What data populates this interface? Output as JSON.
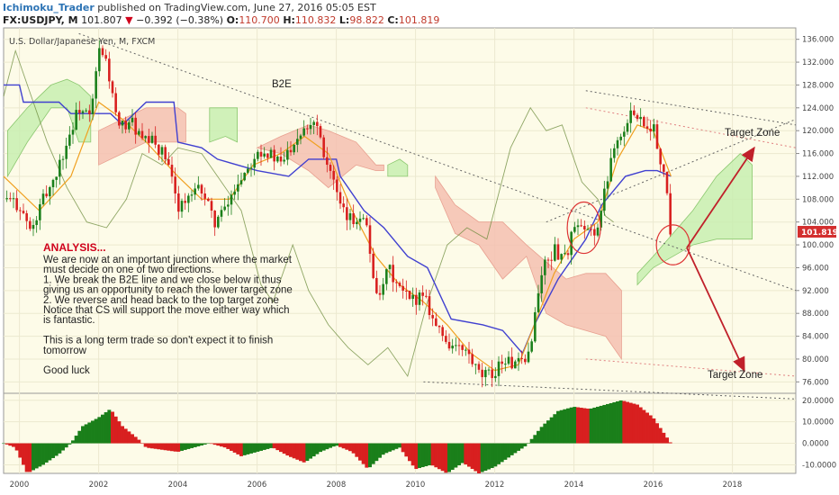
{
  "header": {
    "publisher": "Ichimoku_Trader",
    "published_text": "published on TradingView.com, June 27, 2016 05:05 EST",
    "symbol": "FX:USDJPY, M",
    "last": "101.807",
    "change": "−0.392 (−0.38%)",
    "o_label": "O:",
    "o": "110.700",
    "h_label": "H:",
    "h": "110.832",
    "l_label": "L:",
    "l": "98.822",
    "c_label": "C:",
    "c": "101.819"
  },
  "chart_title": "U.S. Dollar/Japanese Yen, M, FXCM",
  "annotations": {
    "b2e": "B2E",
    "target_top": "Target Zone",
    "target_bottom": "Target Zone",
    "analysis_title": "ANALYSIS...",
    "analysis_lines": [
      "We are now at an important junction where the market",
      "must decide on one of two directions.",
      "1. We break the B2E line and we close below it thus",
      "giving us an opportunity to reach the lower target zone",
      "2. We reverse and head back to the top target zone",
      "Notice that CS will support the move either way which",
      "is fantastic.",
      "",
      "This is a long term trade so don't expect it to finish",
      "tomorrow",
      "",
      "Good luck"
    ]
  },
  "price_label": "101.819",
  "colors": {
    "up": "#1a7f1a",
    "down": "#d81f1f",
    "tenkan": "#f0a020",
    "kijun": "#4040d0",
    "chikou": "#6a8a3a",
    "kumo_bull": "#c8efb0",
    "kumo_bear": "#f5c0b0",
    "arrow": "#c0202a",
    "label_bg": "#d32f2f"
  },
  "chart_data": {
    "type": "candlestick",
    "title": "U.S. Dollar/Japanese Yen, M, FXCM",
    "x_ticks": [
      "2000",
      "2002",
      "2004",
      "2006",
      "2008",
      "2010",
      "2012",
      "2014",
      "2016",
      "2018"
    ],
    "y_ticks": [
      "136.000",
      "132.000",
      "128.000",
      "124.000",
      "120.000",
      "116.000",
      "112.000",
      "108.000",
      "104.000",
      "100.000",
      "96.000",
      "92.000",
      "88.000",
      "84.000",
      "80.000",
      "76.000"
    ],
    "ylim": [
      74,
      138
    ],
    "xlim": [
      1999.6,
      2019.6
    ],
    "last_close": 101.819,
    "close_path": [
      [
        1999.6,
        108
      ],
      [
        2000.0,
        107
      ],
      [
        2000.3,
        102
      ],
      [
        2000.6,
        108
      ],
      [
        2000.9,
        112
      ],
      [
        2001.2,
        118
      ],
      [
        2001.5,
        124
      ],
      [
        2001.8,
        122
      ],
      [
        2002.0,
        134
      ],
      [
        2002.2,
        132
      ],
      [
        2002.5,
        120
      ],
      [
        2002.8,
        122
      ],
      [
        2003.1,
        118
      ],
      [
        2003.4,
        118
      ],
      [
        2003.7,
        115
      ],
      [
        2004.0,
        107
      ],
      [
        2004.3,
        108
      ],
      [
        2004.6,
        110
      ],
      [
        2004.9,
        104
      ],
      [
        2005.2,
        106
      ],
      [
        2005.5,
        111
      ],
      [
        2005.8,
        114
      ],
      [
        2006.0,
        117
      ],
      [
        2006.3,
        116
      ],
      [
        2006.6,
        114
      ],
      [
        2006.9,
        118
      ],
      [
        2007.2,
        121
      ],
      [
        2007.5,
        122
      ],
      [
        2007.7,
        116
      ],
      [
        2007.9,
        112
      ],
      [
        2008.1,
        106
      ],
      [
        2008.4,
        104
      ],
      [
        2008.7,
        106
      ],
      [
        2008.9,
        96
      ],
      [
        2009.1,
        90
      ],
      [
        2009.3,
        96
      ],
      [
        2009.6,
        92
      ],
      [
        2009.9,
        90
      ],
      [
        2010.2,
        92
      ],
      [
        2010.5,
        86
      ],
      [
        2010.8,
        83
      ],
      [
        2011.0,
        82
      ],
      [
        2011.3,
        81
      ],
      [
        2011.6,
        77
      ],
      [
        2011.9,
        77
      ],
      [
        2012.2,
        80
      ],
      [
        2012.5,
        79
      ],
      [
        2012.8,
        79
      ],
      [
        2013.0,
        87
      ],
      [
        2013.2,
        96
      ],
      [
        2013.5,
        99
      ],
      [
        2013.8,
        98
      ],
      [
        2014.0,
        103
      ],
      [
        2014.3,
        102
      ],
      [
        2014.6,
        103
      ],
      [
        2014.8,
        110
      ],
      [
        2015.0,
        118
      ],
      [
        2015.3,
        120
      ],
      [
        2015.5,
        124
      ],
      [
        2015.8,
        121
      ],
      [
        2016.0,
        121
      ],
      [
        2016.2,
        113
      ],
      [
        2016.35,
        110
      ],
      [
        2016.45,
        101.819
      ]
    ],
    "tenkan": [
      [
        1999.6,
        112
      ],
      [
        2000.5,
        106
      ],
      [
        2001.3,
        112
      ],
      [
        2002.0,
        125
      ],
      [
        2002.6,
        122
      ],
      [
        2003.2,
        118
      ],
      [
        2004.0,
        112
      ],
      [
        2004.6,
        108
      ],
      [
        2005.3,
        108
      ],
      [
        2005.9,
        114
      ],
      [
        2006.6,
        116
      ],
      [
        2007.2,
        119
      ],
      [
        2007.8,
        116
      ],
      [
        2008.4,
        106
      ],
      [
        2009.0,
        98
      ],
      [
        2009.6,
        93
      ],
      [
        2010.2,
        90
      ],
      [
        2010.8,
        86
      ],
      [
        2011.4,
        81
      ],
      [
        2012.0,
        78
      ],
      [
        2012.6,
        79
      ],
      [
        2013.0,
        86
      ],
      [
        2013.5,
        95
      ],
      [
        2014.0,
        101
      ],
      [
        2014.6,
        104
      ],
      [
        2015.1,
        115
      ],
      [
        2015.6,
        121
      ],
      [
        2016.0,
        120
      ],
      [
        2016.45,
        112
      ]
    ],
    "kijun": [
      [
        1999.6,
        128
      ],
      [
        2000.0,
        128
      ],
      [
        2000.1,
        125
      ],
      [
        2001.0,
        125
      ],
      [
        2001.3,
        123
      ],
      [
        2002.3,
        123
      ],
      [
        2002.6,
        121
      ],
      [
        2003.2,
        125
      ],
      [
        2003.9,
        125
      ],
      [
        2004.0,
        118
      ],
      [
        2004.6,
        117
      ],
      [
        2005.0,
        115
      ],
      [
        2006.0,
        113
      ],
      [
        2006.8,
        112
      ],
      [
        2007.3,
        115
      ],
      [
        2008.0,
        115
      ],
      [
        2008.1,
        112
      ],
      [
        2008.7,
        106
      ],
      [
        2009.2,
        103
      ],
      [
        2009.8,
        98
      ],
      [
        2010.3,
        96
      ],
      [
        2010.9,
        87
      ],
      [
        2011.7,
        86
      ],
      [
        2012.2,
        85
      ],
      [
        2012.7,
        81
      ],
      [
        2013.0,
        86
      ],
      [
        2013.6,
        94
      ],
      [
        2014.3,
        101
      ],
      [
        2014.7,
        107
      ],
      [
        2015.3,
        112
      ],
      [
        2015.8,
        113
      ],
      [
        2016.1,
        113
      ],
      [
        2016.45,
        112
      ]
    ],
    "chikou": [
      [
        1999.6,
        126
      ],
      [
        1999.9,
        134
      ],
      [
        2000.3,
        126
      ],
      [
        2000.7,
        118
      ],
      [
        2001.2,
        110
      ],
      [
        2001.7,
        104
      ],
      [
        2002.2,
        103
      ],
      [
        2002.7,
        108
      ],
      [
        2003.1,
        116
      ],
      [
        2003.6,
        114
      ],
      [
        2004.0,
        117
      ],
      [
        2004.6,
        116
      ],
      [
        2005.0,
        112
      ],
      [
        2005.6,
        106
      ],
      [
        2006.1,
        93
      ],
      [
        2006.4,
        90
      ],
      [
        2006.9,
        100
      ],
      [
        2007.3,
        92
      ],
      [
        2007.8,
        86
      ],
      [
        2008.3,
        82
      ],
      [
        2008.8,
        79
      ],
      [
        2009.3,
        82
      ],
      [
        2009.8,
        77
      ],
      [
        2010.3,
        90
      ],
      [
        2010.8,
        100
      ],
      [
        2011.3,
        103
      ],
      [
        2011.8,
        101
      ],
      [
        2012.4,
        117
      ],
      [
        2012.9,
        124
      ],
      [
        2013.3,
        120
      ],
      [
        2013.7,
        121
      ],
      [
        2014.2,
        111
      ],
      [
        2014.6,
        108
      ],
      [
        2014.8,
        105
      ],
      [
        2015.0,
        104
      ]
    ],
    "kumo_bull_spans": [
      {
        "a": [
          [
            1999.7,
            112
          ],
          [
            2000.2,
            118
          ],
          [
            2000.8,
            124
          ],
          [
            2001.2,
            124
          ],
          [
            2001.5,
            118
          ],
          [
            2001.8,
            118
          ]
        ],
        "b": [
          [
            1999.7,
            120
          ],
          [
            2000.2,
            124
          ],
          [
            2000.8,
            128
          ],
          [
            2001.2,
            129
          ],
          [
            2001.5,
            128
          ],
          [
            2001.8,
            126
          ]
        ]
      },
      {
        "a": [
          [
            2004.8,
            118
          ],
          [
            2005.2,
            119
          ],
          [
            2005.5,
            118
          ]
        ],
        "b": [
          [
            2004.8,
            124
          ],
          [
            2005.2,
            124
          ],
          [
            2005.5,
            124
          ]
        ]
      },
      {
        "a": [
          [
            2009.3,
            114
          ],
          [
            2009.6,
            115
          ],
          [
            2009.8,
            114
          ]
        ],
        "b": [
          [
            2009.3,
            112
          ],
          [
            2009.6,
            112
          ],
          [
            2009.8,
            112
          ]
        ]
      },
      {
        "a": [
          [
            2015.6,
            95
          ],
          [
            2016.0,
            98
          ],
          [
            2016.5,
            102
          ],
          [
            2017.0,
            106
          ],
          [
            2017.6,
            112
          ],
          [
            2018.2,
            116
          ],
          [
            2018.5,
            114
          ]
        ],
        "b": [
          [
            2015.6,
            93
          ],
          [
            2016.0,
            96
          ],
          [
            2016.5,
            98
          ],
          [
            2017.0,
            100
          ],
          [
            2017.6,
            101
          ],
          [
            2018.2,
            101
          ],
          [
            2018.5,
            101
          ]
        ]
      }
    ],
    "kumo_bear_spans": [
      {
        "a": [
          [
            2002.0,
            120
          ],
          [
            2002.6,
            122
          ],
          [
            2003.2,
            124
          ],
          [
            2004.0,
            124
          ],
          [
            2004.2,
            123
          ]
        ],
        "b": [
          [
            2002.0,
            114
          ],
          [
            2002.6,
            116
          ],
          [
            2003.2,
            118
          ],
          [
            2004.0,
            118
          ],
          [
            2004.2,
            118
          ]
        ]
      },
      {
        "a": [
          [
            2006.0,
            117
          ],
          [
            2006.6,
            119
          ],
          [
            2007.3,
            121
          ],
          [
            2007.8,
            120
          ],
          [
            2008.5,
            118
          ],
          [
            2009.0,
            114
          ],
          [
            2009.2,
            114
          ]
        ],
        "b": [
          [
            2006.0,
            117
          ],
          [
            2006.6,
            116
          ],
          [
            2007.3,
            113
          ],
          [
            2007.8,
            110
          ],
          [
            2008.5,
            114
          ],
          [
            2009.0,
            113
          ],
          [
            2009.2,
            113
          ]
        ]
      },
      {
        "a": [
          [
            2010.5,
            112
          ],
          [
            2011.0,
            107
          ],
          [
            2011.6,
            104
          ],
          [
            2012.2,
            104
          ],
          [
            2012.8,
            100
          ],
          [
            2013.3,
            97
          ],
          [
            2013.8,
            94
          ],
          [
            2014.3,
            95
          ],
          [
            2014.8,
            95
          ],
          [
            2015.2,
            92
          ]
        ],
        "b": [
          [
            2010.5,
            110
          ],
          [
            2011.0,
            102
          ],
          [
            2011.6,
            100
          ],
          [
            2012.2,
            94
          ],
          [
            2012.8,
            98
          ],
          [
            2013.3,
            88
          ],
          [
            2013.8,
            86
          ],
          [
            2014.3,
            85
          ],
          [
            2014.8,
            84
          ],
          [
            2015.2,
            80
          ]
        ]
      }
    ],
    "trendlines": [
      {
        "name": "B2E",
        "from": [
          2001.5,
          137
        ],
        "to": [
          2019.6,
          92
        ],
        "style": "dotted"
      },
      {
        "from": [
          2013.3,
          104
        ],
        "to": [
          2019.6,
          122
        ],
        "style": "dotted"
      },
      {
        "from": [
          2010.2,
          76
        ],
        "to": [
          2019.6,
          73
        ],
        "style": "dotted"
      },
      {
        "from": [
          2014.3,
          127
        ],
        "to": [
          2019.6,
          121
        ],
        "style": "dotted"
      },
      {
        "from": [
          2014.3,
          124
        ],
        "to": [
          2019.6,
          117
        ],
        "style": "dotted_red"
      },
      {
        "from": [
          2014.3,
          80
        ],
        "to": [
          2019.6,
          77
        ],
        "style": "dotted_red"
      }
    ],
    "arrows": [
      {
        "from": [
          2016.85,
          99.5
        ],
        "to": [
          2018.55,
          117
        ]
      },
      {
        "from": [
          2016.85,
          99.5
        ],
        "to": [
          2018.3,
          78
        ]
      }
    ],
    "circles": [
      {
        "cx": 2014.25,
        "cy": 103,
        "rx": 0.42,
        "ry": 4.5
      },
      {
        "cx": 2016.5,
        "cy": 100,
        "rx": 0.42,
        "ry": 3.5
      }
    ],
    "oscillator": {
      "ylim": [
        -14,
        22
      ],
      "y_ticks": [
        "20.0000",
        "10.0000",
        "0.0000",
        "-10.0000"
      ],
      "values": [
        [
          1999.6,
          0
        ],
        [
          1999.9,
          -2
        ],
        [
          2000.2,
          -14
        ],
        [
          2000.6,
          -10
        ],
        [
          2001.0,
          -5
        ],
        [
          2001.3,
          0
        ],
        [
          2001.6,
          8
        ],
        [
          2002.0,
          12
        ],
        [
          2002.3,
          16
        ],
        [
          2002.6,
          8
        ],
        [
          2003.0,
          2
        ],
        [
          2003.2,
          -2
        ],
        [
          2003.6,
          -3
        ],
        [
          2004.0,
          -4
        ],
        [
          2004.4,
          -2
        ],
        [
          2004.8,
          0
        ],
        [
          2005.2,
          -2
        ],
        [
          2005.6,
          -6
        ],
        [
          2006.0,
          -4
        ],
        [
          2006.4,
          -2
        ],
        [
          2006.8,
          -6
        ],
        [
          2007.2,
          -9
        ],
        [
          2007.6,
          -4
        ],
        [
          2008.0,
          -1
        ],
        [
          2008.4,
          -4
        ],
        [
          2008.8,
          -12
        ],
        [
          2009.2,
          -5
        ],
        [
          2009.6,
          -2
        ],
        [
          2010.0,
          -12
        ],
        [
          2010.4,
          -10
        ],
        [
          2010.8,
          -14
        ],
        [
          2011.2,
          -9
        ],
        [
          2011.6,
          -14
        ],
        [
          2012.0,
          -11
        ],
        [
          2012.4,
          -6
        ],
        [
          2012.8,
          -1
        ],
        [
          2013.2,
          8
        ],
        [
          2013.6,
          15
        ],
        [
          2014.0,
          17
        ],
        [
          2014.4,
          16
        ],
        [
          2014.8,
          18
        ],
        [
          2015.2,
          20
        ],
        [
          2015.6,
          18
        ],
        [
          2016.0,
          12
        ],
        [
          2016.45,
          0
        ]
      ]
    }
  }
}
